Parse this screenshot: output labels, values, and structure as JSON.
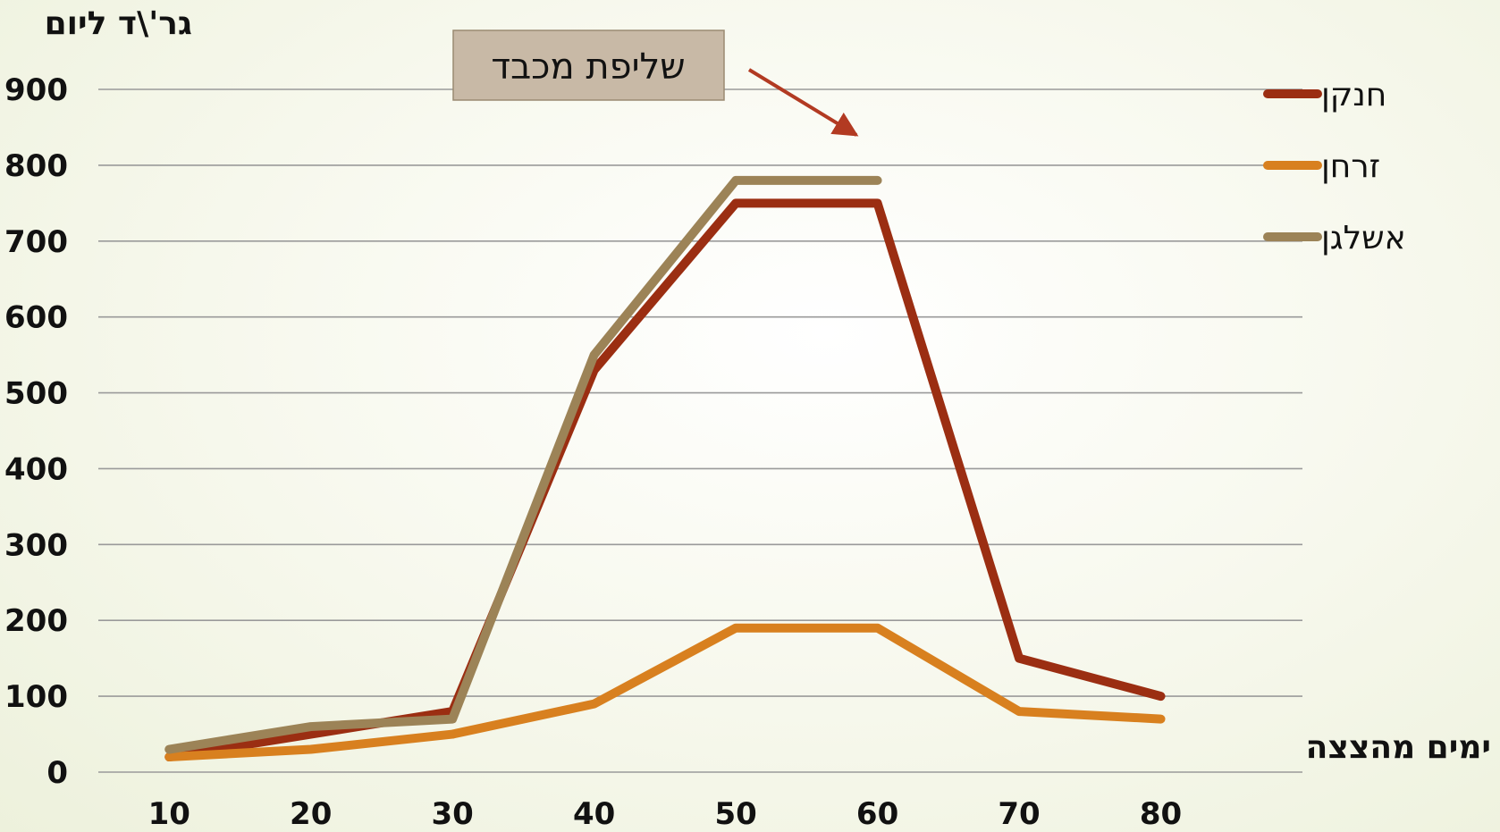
{
  "chart_data": {
    "type": "line",
    "title": "",
    "ylabel": "גר'\\ד ליום",
    "xlabel": "ימים מהצצה",
    "x": [
      10,
      20,
      30,
      40,
      50,
      60,
      70,
      80
    ],
    "ylim": [
      0,
      900
    ],
    "y_ticks": [
      0,
      100,
      200,
      300,
      400,
      500,
      600,
      700,
      800,
      900
    ],
    "grid": true,
    "legend_position": "top-right",
    "series": [
      {
        "name": "חנקן",
        "color": "#9b2e12",
        "values": [
          20,
          50,
          80,
          530,
          750,
          750,
          150,
          100
        ]
      },
      {
        "name": "זרחן",
        "color": "#d8801f",
        "values": [
          20,
          30,
          50,
          90,
          190,
          190,
          80,
          70
        ]
      },
      {
        "name": "אשלגן",
        "color": "#9c8357",
        "values": [
          30,
          60,
          70,
          550,
          780,
          780,
          null,
          null
        ]
      }
    ],
    "annotations": [
      {
        "text": "שליפת מכבד",
        "points_to_x": 55
      }
    ]
  }
}
